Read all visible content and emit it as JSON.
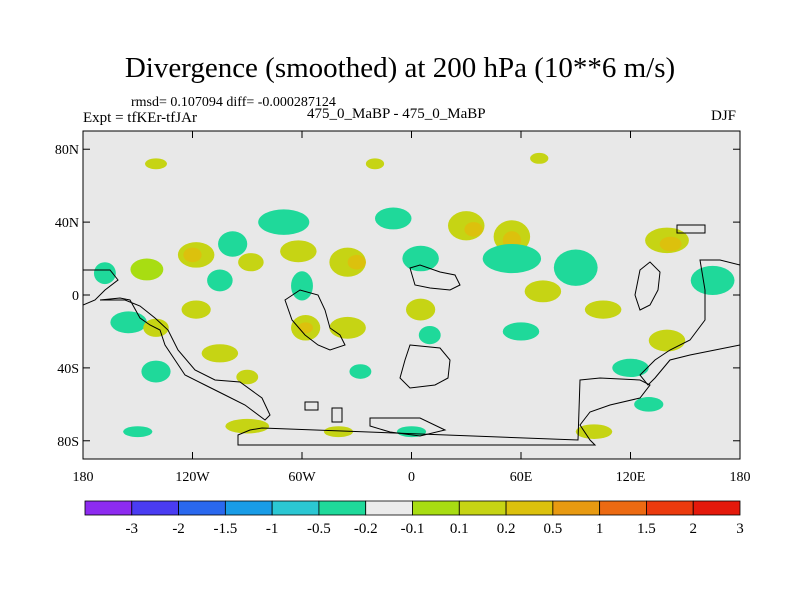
{
  "header": {
    "title": "Divergence (smoothed) at 200 hPa (10**6 m/s)",
    "stats": "rmsd= 0.107094 diff= -0.000287124",
    "expt": "Expt = tfKEr-tfJAr",
    "runs": "475_0_MaBP - 475_0_MaBP",
    "season": "DJF"
  },
  "chart_data": {
    "type": "heatmap",
    "title": "Divergence (smoothed) at 200 hPa (10**6 m/s)",
    "xlim": [
      -180,
      180
    ],
    "ylim": [
      -90,
      90
    ],
    "x_ticks": [
      {
        "value": -180,
        "label": "180"
      },
      {
        "value": -120,
        "label": "120W"
      },
      {
        "value": -60,
        "label": "60W"
      },
      {
        "value": 0,
        "label": "0"
      },
      {
        "value": 60,
        "label": "60E"
      },
      {
        "value": 120,
        "label": "120E"
      },
      {
        "value": 180,
        "label": "180"
      }
    ],
    "y_ticks": [
      {
        "value": 80,
        "label": "80N"
      },
      {
        "value": 40,
        "label": "40N"
      },
      {
        "value": 0,
        "label": "0"
      },
      {
        "value": -40,
        "label": "40S"
      },
      {
        "value": -80,
        "label": "80S"
      }
    ],
    "colorbar": {
      "labels": [
        "-3",
        "-2",
        "-1.5",
        "-1",
        "-0.5",
        "-0.2",
        "-0.1",
        "0.1",
        "0.2",
        "0.5",
        "1",
        "1.5",
        "2",
        "3"
      ],
      "colors": [
        "#8d2bf0",
        "#4a3cf2",
        "#2a68ee",
        "#199ce6",
        "#2bc7d3",
        "#1fd99a",
        "#ebebeb",
        "#a8dd12",
        "#c6d414",
        "#dcc10d",
        "#e89a11",
        "#ec6a12",
        "#eb3a0e",
        "#e4190b"
      ]
    },
    "background_color": "#e8e8e8",
    "blobs": [
      {
        "lon": -145,
        "lat": 14,
        "rx": 9,
        "ry": 6,
        "level": 7
      },
      {
        "lon": -168,
        "lat": 12,
        "rx": 6,
        "ry": 6,
        "level": 5
      },
      {
        "lon": -155,
        "lat": -15,
        "rx": 10,
        "ry": 6,
        "level": 5
      },
      {
        "lon": -140,
        "lat": -18,
        "rx": 7,
        "ry": 5,
        "level": 8
      },
      {
        "lon": -118,
        "lat": 22,
        "rx": 10,
        "ry": 7,
        "level": 8
      },
      {
        "lon": -120,
        "lat": 22,
        "rx": 5,
        "ry": 4,
        "level": 9
      },
      {
        "lon": -118,
        "lat": -8,
        "rx": 8,
        "ry": 5,
        "level": 8
      },
      {
        "lon": -105,
        "lat": 8,
        "rx": 7,
        "ry": 6,
        "level": 5
      },
      {
        "lon": -98,
        "lat": 28,
        "rx": 8,
        "ry": 7,
        "level": 5
      },
      {
        "lon": -88,
        "lat": 18,
        "rx": 7,
        "ry": 5,
        "level": 8
      },
      {
        "lon": -105,
        "lat": -32,
        "rx": 10,
        "ry": 5,
        "level": 8
      },
      {
        "lon": -140,
        "lat": -42,
        "rx": 8,
        "ry": 6,
        "level": 5
      },
      {
        "lon": -70,
        "lat": 40,
        "rx": 14,
        "ry": 7,
        "level": 5
      },
      {
        "lon": -62,
        "lat": 24,
        "rx": 10,
        "ry": 6,
        "level": 8
      },
      {
        "lon": -60,
        "lat": 5,
        "rx": 6,
        "ry": 8,
        "level": 5
      },
      {
        "lon": -58,
        "lat": -18,
        "rx": 8,
        "ry": 7,
        "level": 8
      },
      {
        "lon": -58,
        "lat": -18,
        "rx": 4,
        "ry": 3,
        "level": 9
      },
      {
        "lon": -35,
        "lat": 18,
        "rx": 10,
        "ry": 8,
        "level": 8
      },
      {
        "lon": -30,
        "lat": 18,
        "rx": 5,
        "ry": 4,
        "level": 9
      },
      {
        "lon": -35,
        "lat": -18,
        "rx": 10,
        "ry": 6,
        "level": 8
      },
      {
        "lon": -10,
        "lat": 42,
        "rx": 10,
        "ry": 6,
        "level": 5
      },
      {
        "lon": 5,
        "lat": 20,
        "rx": 10,
        "ry": 7,
        "level": 5
      },
      {
        "lon": 5,
        "lat": -8,
        "rx": 8,
        "ry": 6,
        "level": 8
      },
      {
        "lon": 10,
        "lat": -22,
        "rx": 6,
        "ry": 5,
        "level": 5
      },
      {
        "lon": 30,
        "lat": 38,
        "rx": 10,
        "ry": 8,
        "level": 8
      },
      {
        "lon": 34,
        "lat": 36,
        "rx": 5,
        "ry": 4,
        "level": 9
      },
      {
        "lon": 55,
        "lat": 32,
        "rx": 10,
        "ry": 9,
        "level": 8
      },
      {
        "lon": 55,
        "lat": 30,
        "rx": 5,
        "ry": 5,
        "level": 9
      },
      {
        "lon": 55,
        "lat": 20,
        "rx": 16,
        "ry": 8,
        "level": 5
      },
      {
        "lon": 90,
        "lat": 15,
        "rx": 12,
        "ry": 10,
        "level": 5
      },
      {
        "lon": 72,
        "lat": 2,
        "rx": 10,
        "ry": 6,
        "level": 8
      },
      {
        "lon": 105,
        "lat": -8,
        "rx": 10,
        "ry": 5,
        "level": 8
      },
      {
        "lon": 60,
        "lat": -20,
        "rx": 10,
        "ry": 5,
        "level": 5
      },
      {
        "lon": 140,
        "lat": 30,
        "rx": 12,
        "ry": 7,
        "level": 8
      },
      {
        "lon": 142,
        "lat": 28,
        "rx": 6,
        "ry": 4,
        "level": 9
      },
      {
        "lon": 165,
        "lat": 8,
        "rx": 12,
        "ry": 8,
        "level": 5
      },
      {
        "lon": 140,
        "lat": -25,
        "rx": 10,
        "ry": 6,
        "level": 8
      },
      {
        "lon": 120,
        "lat": -40,
        "rx": 10,
        "ry": 5,
        "level": 5
      },
      {
        "lon": 130,
        "lat": -60,
        "rx": 8,
        "ry": 4,
        "level": 5
      },
      {
        "lon": 100,
        "lat": -75,
        "rx": 10,
        "ry": 4,
        "level": 8
      },
      {
        "lon": -90,
        "lat": -72,
        "rx": 12,
        "ry": 4,
        "level": 8
      },
      {
        "lon": -150,
        "lat": -75,
        "rx": 8,
        "ry": 3,
        "level": 5
      },
      {
        "lon": -140,
        "lat": 72,
        "rx": 6,
        "ry": 3,
        "level": 8
      },
      {
        "lon": 70,
        "lat": 75,
        "rx": 5,
        "ry": 3,
        "level": 8
      },
      {
        "lon": -20,
        "lat": 72,
        "rx": 5,
        "ry": 3,
        "level": 8
      },
      {
        "lon": -90,
        "lat": -45,
        "rx": 6,
        "ry": 4,
        "level": 8
      },
      {
        "lon": -28,
        "lat": -42,
        "rx": 6,
        "ry": 4,
        "level": 5
      },
      {
        "lon": 0,
        "lat": -75,
        "rx": 8,
        "ry": 3,
        "level": 5
      },
      {
        "lon": -40,
        "lat": -75,
        "rx": 8,
        "ry": 3,
        "level": 8
      }
    ]
  }
}
